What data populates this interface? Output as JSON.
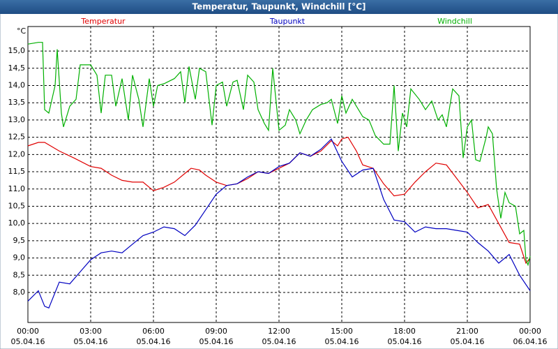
{
  "chart_data": {
    "type": "line",
    "title": "Temperatur, Taupunkt, Windchill [°C]",
    "y_unit": "°C",
    "xlim": [
      0,
      24
    ],
    "ylim": [
      7.13,
      15.71
    ],
    "xticks": [
      {
        "value": 0,
        "label": "00:00"
      },
      {
        "value": 3,
        "label": "03:00"
      },
      {
        "value": 6,
        "label": "06:00"
      },
      {
        "value": 9,
        "label": "09:00"
      },
      {
        "value": 12,
        "label": "12:00"
      },
      {
        "value": 15,
        "label": "15:00"
      },
      {
        "value": 18,
        "label": "18:00"
      },
      {
        "value": 21,
        "label": "21:00"
      },
      {
        "value": 24,
        "label": "00:00"
      }
    ],
    "xtick_dates": [
      "05.04.16",
      "05.04.16",
      "05.04.16",
      "05.04.16",
      "05.04.16",
      "05.04.16",
      "05.04.16",
      "05.04.16",
      "06.04.16"
    ],
    "yticks": [
      {
        "value": 8,
        "label": "8,0"
      },
      {
        "value": 8.5,
        "label": "8,5"
      },
      {
        "value": 9,
        "label": "9,0"
      },
      {
        "value": 9.5,
        "label": "9,5"
      },
      {
        "value": 10,
        "label": "10,0"
      },
      {
        "value": 10.5,
        "label": "10,5"
      },
      {
        "value": 11,
        "label": "11,0"
      },
      {
        "value": 11.5,
        "label": "11,5"
      },
      {
        "value": 12,
        "label": "12,0"
      },
      {
        "value": 12.5,
        "label": "12,5"
      },
      {
        "value": 13,
        "label": "13,0"
      },
      {
        "value": 13.5,
        "label": "13,5"
      },
      {
        "value": 14,
        "label": "14,0"
      },
      {
        "value": 14.5,
        "label": "14,5"
      },
      {
        "value": 15,
        "label": "15,0"
      }
    ],
    "grid": true,
    "series": [
      {
        "name": "Temperatur",
        "color": "#e00000",
        "x": [
          0,
          0.5,
          0.8,
          1.5,
          2.2,
          3,
          3.5,
          4,
          4.5,
          5,
          5.5,
          5.9,
          6,
          6.5,
          7,
          7.5,
          7.8,
          8.2,
          8.5,
          9,
          9.5,
          10,
          10.5,
          11,
          11.5,
          12,
          12.5,
          13,
          13.5,
          14,
          14.5,
          14.8,
          15,
          15.3,
          15.7,
          16,
          16.5,
          17,
          17.5,
          18,
          18.5,
          19,
          19.5,
          20,
          20.5,
          21,
          21.5,
          22,
          22.5,
          23,
          23.5,
          23.8,
          24
        ],
        "values": [
          12.25,
          12.35,
          12.35,
          12.1,
          11.9,
          11.65,
          11.6,
          11.4,
          11.25,
          11.2,
          11.2,
          11.0,
          10.95,
          11.05,
          11.2,
          11.45,
          11.6,
          11.55,
          11.4,
          11.2,
          11.1,
          11.15,
          11.3,
          11.5,
          11.45,
          11.6,
          11.75,
          12.05,
          11.95,
          12.1,
          12.4,
          12.25,
          12.45,
          12.5,
          12.1,
          11.7,
          11.6,
          11.15,
          10.8,
          10.85,
          11.2,
          11.5,
          11.75,
          11.7,
          11.3,
          10.9,
          10.45,
          10.55,
          10.0,
          9.45,
          9.4,
          8.85,
          9.0
        ]
      },
      {
        "name": "Taupunkt",
        "color": "#0000c0",
        "x": [
          0,
          0.5,
          0.8,
          1,
          1.5,
          2,
          2.5,
          3,
          3.5,
          4,
          4.5,
          5,
          5.5,
          6,
          6.5,
          7,
          7.5,
          8,
          8.5,
          9,
          9.5,
          10,
          10.5,
          11,
          11.5,
          12,
          12.5,
          13,
          13.5,
          14,
          14.5,
          15,
          15.5,
          16,
          16.5,
          17,
          17.5,
          18,
          18.5,
          19,
          19.5,
          20,
          20.5,
          21,
          21.5,
          22,
          22.5,
          23,
          23.5,
          24
        ],
        "values": [
          7.75,
          8.05,
          7.6,
          7.55,
          8.3,
          8.25,
          8.6,
          8.95,
          9.15,
          9.2,
          9.15,
          9.4,
          9.65,
          9.75,
          9.9,
          9.85,
          9.65,
          9.95,
          10.4,
          10.85,
          11.1,
          11.15,
          11.35,
          11.5,
          11.45,
          11.65,
          11.75,
          12.05,
          11.95,
          12.15,
          12.45,
          11.8,
          11.35,
          11.55,
          11.6,
          10.7,
          10.1,
          10.05,
          9.75,
          9.9,
          9.85,
          9.85,
          9.8,
          9.75,
          9.45,
          9.2,
          8.85,
          9.1,
          8.5,
          8.05
        ]
      },
      {
        "name": "Windchill",
        "color": "#00b000",
        "x": [
          0,
          0.5,
          0.7,
          0.8,
          1,
          1.3,
          1.4,
          1.6,
          1.7,
          2,
          2.3,
          2.5,
          3,
          3.3,
          3.5,
          3.7,
          4,
          4.2,
          4.5,
          4.8,
          5,
          5.3,
          5.5,
          5.8,
          6,
          6.2,
          6.5,
          7,
          7.3,
          7.5,
          7.7,
          8,
          8.2,
          8.5,
          8.8,
          9,
          9.3,
          9.5,
          9.8,
          10,
          10.3,
          10.5,
          10.8,
          11,
          11.3,
          11.5,
          11.7,
          12,
          12.3,
          12.5,
          12.8,
          13,
          13.3,
          13.6,
          14,
          14.3,
          14.5,
          14.8,
          15,
          15.2,
          15.5,
          16,
          16.3,
          16.6,
          17,
          17.3,
          17.5,
          17.7,
          17.9,
          18.1,
          18.3,
          18.7,
          19,
          19.3,
          19.6,
          19.8,
          20,
          20.3,
          20.6,
          20.8,
          21,
          21.2,
          21.4,
          21.6,
          21.9,
          22,
          22.2,
          22.4,
          22.6,
          22.8,
          23,
          23.3,
          23.5,
          23.7,
          23.8,
          23.9,
          24
        ],
        "values": [
          15.2,
          15.25,
          15.25,
          13.3,
          13.2,
          14.0,
          15.05,
          13.2,
          12.8,
          13.4,
          13.6,
          14.6,
          14.6,
          14.3,
          13.2,
          14.3,
          14.3,
          13.4,
          14.2,
          13.0,
          14.3,
          13.6,
          12.8,
          14.2,
          13.4,
          14.0,
          14.05,
          14.2,
          14.4,
          13.5,
          14.55,
          13.6,
          14.5,
          14.4,
          12.85,
          14.0,
          14.1,
          13.4,
          14.1,
          14.15,
          13.3,
          14.3,
          14.1,
          13.3,
          12.9,
          12.7,
          14.5,
          12.7,
          12.85,
          13.3,
          13.0,
          12.6,
          13.0,
          13.3,
          13.45,
          13.5,
          13.6,
          12.9,
          13.7,
          13.2,
          13.6,
          13.1,
          13.0,
          12.55,
          12.3,
          12.3,
          14.0,
          12.1,
          13.2,
          12.8,
          13.9,
          13.6,
          13.3,
          13.55,
          13.0,
          13.15,
          12.8,
          13.9,
          13.7,
          11.9,
          12.8,
          13.0,
          11.85,
          11.8,
          12.5,
          12.8,
          12.6,
          11.0,
          10.15,
          10.9,
          10.6,
          10.5,
          9.7,
          9.8,
          8.95,
          8.8,
          9.05
        ]
      }
    ]
  }
}
